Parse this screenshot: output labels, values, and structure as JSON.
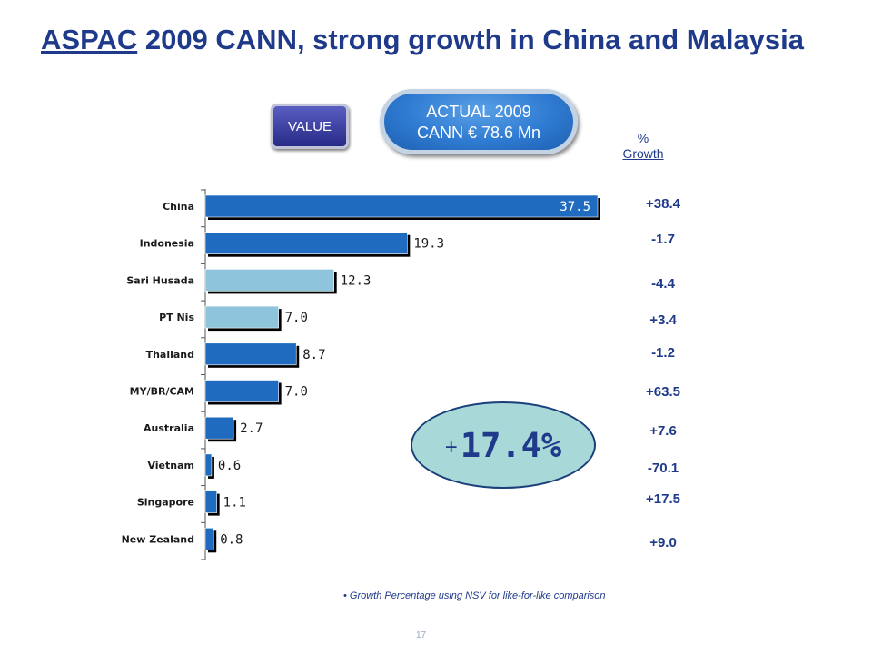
{
  "title": {
    "underlined": "ASPAC",
    "rest": " 2009 CANN, strong growth in China and Malaysia"
  },
  "value_button": "VALUE",
  "actual_pill": {
    "line1": "ACTUAL 2009",
    "line2": "CANN € 78.6 Mn"
  },
  "growth_header": {
    "line1": "%",
    "line2": "Growth"
  },
  "highlight": {
    "sign": "+",
    "value": "17.4%"
  },
  "footnote": "• Growth Percentage using NSV for like-for-like comparison",
  "page_number": "17",
  "colors": {
    "dark_bar": "#1f6bbf",
    "light_bar": "#8fc5dc",
    "shadow": "#000000",
    "title": "#1f3a8a",
    "bubble": "#a8d8d8"
  },
  "chart_data": {
    "type": "bar",
    "orientation": "horizontal",
    "categories": [
      "China",
      "Indonesia",
      "Sari Husada",
      "PT Nis",
      "Thailand",
      "MY/BR/CAM",
      "Australia",
      "Vietnam",
      "Singapore",
      "New Zealand"
    ],
    "values": [
      37.5,
      19.3,
      12.3,
      7.0,
      8.7,
      7.0,
      2.7,
      0.6,
      1.1,
      0.8
    ],
    "value_labels": [
      "37.5",
      "19.3",
      "12.3",
      "7.0",
      "8.7",
      "7.0",
      "2.7",
      "0.6",
      "1.1",
      "0.8"
    ],
    "bar_shades": [
      "dark",
      "dark",
      "light",
      "light",
      "dark",
      "dark",
      "dark",
      "dark",
      "dark",
      "dark"
    ],
    "growth_labels": [
      "+38.4",
      "-1.7",
      "-4.4",
      "+3.4",
      "-1.2",
      "+63.5",
      "+7.6",
      "-70.1",
      "+17.5",
      "+9.0"
    ],
    "xlim": [
      0,
      37.5
    ],
    "grid": false,
    "legend": "none"
  }
}
